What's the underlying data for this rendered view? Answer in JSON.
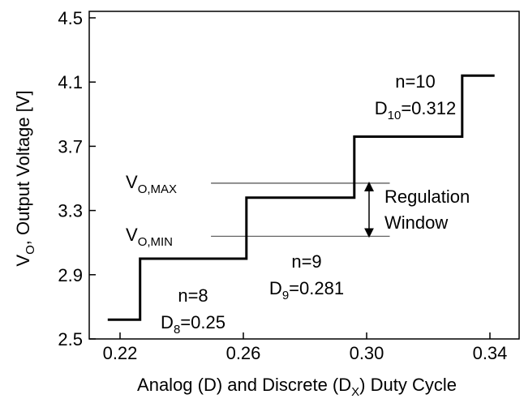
{
  "chart_data": {
    "type": "step",
    "xlabel": {
      "main": "Analog (D) and Discrete (D",
      "sub": "X",
      "rest": ") Duty Cycle"
    },
    "ylabel": {
      "main": "V",
      "sub": "O",
      "rest": ", Output Voltage [V]"
    },
    "xlim": [
      0.21,
      0.35
    ],
    "ylim": [
      2.5,
      4.5
    ],
    "xticks": [
      0.22,
      0.26,
      {
        "value": 0.3,
        "label": "0.30"
      },
      0.34
    ],
    "yticks": [
      2.5,
      2.9,
      3.3,
      3.7,
      4.1,
      4.5
    ],
    "series": [
      {
        "color": "#000000",
        "x": [
          0.216,
          0.2265,
          0.2265,
          0.261,
          0.261,
          0.296,
          0.296,
          0.331,
          0.331,
          0.3415
        ],
        "values": [
          2.62,
          2.62,
          3.0,
          3.0,
          3.38,
          3.38,
          3.76,
          3.76,
          4.14,
          4.14
        ]
      }
    ],
    "reference_lines": [
      {
        "label": {
          "main": "V",
          "sub": "O,MAX"
        },
        "y": 3.47,
        "x": [
          0.2495,
          0.3075
        ]
      },
      {
        "label": {
          "main": "V",
          "sub": "O,MIN"
        },
        "y": 3.14,
        "x": [
          0.2495,
          0.3075
        ]
      }
    ],
    "annotations": [
      {
        "main": "n=8"
      },
      {
        "main": "D",
        "sub": "8",
        "rest": "=0.25"
      },
      {
        "main": "n=9"
      },
      {
        "main": "D",
        "sub": "9",
        "rest": "=0.281"
      },
      {
        "main": "n=10"
      },
      {
        "main": "D",
        "sub": "10",
        "rest": "=0.312"
      },
      {
        "main": "Regulation"
      },
      {
        "main": "Window"
      }
    ]
  }
}
